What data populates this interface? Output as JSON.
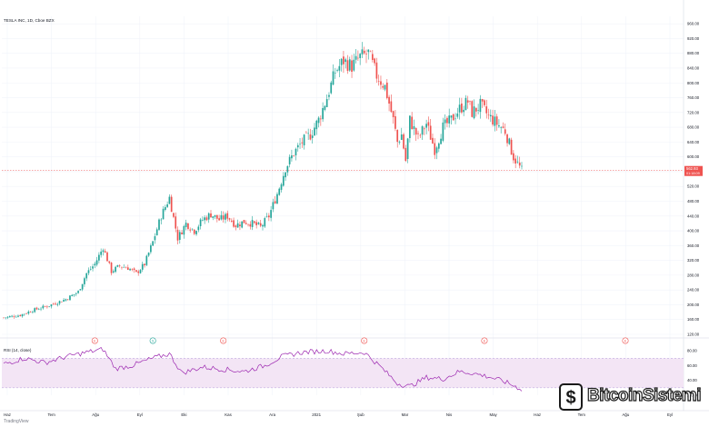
{
  "header": {
    "top_line": "serkaeguflorbin TradingView'da paylaşılmış, May 17, 2021 21:42:56 EEST",
    "symbol_line": "BATS:TSLA, 1D",
    "price_now": "562.93",
    "change": "−26.81 (−4.55%)",
    "open": "O:575.55",
    "high": "H:589.73",
    "low": "L:561.48",
    "close": "C:562.93"
  },
  "chart_label": "TESLA INC, 1D, Cboe BZX",
  "rsi_label": "RSI (14, close)",
  "colors": {
    "up": "#26a69a",
    "down": "#ef5350",
    "rsi": "#9c27b0",
    "rsi_band": "#f3e5f5",
    "price_tag": "#ef5350"
  },
  "price_tag": {
    "price": "562.93",
    "countdown": "01:18:09"
  },
  "tradingview_label": "TradingView",
  "watermark": "BitcoinSistemi",
  "chart_data": {
    "type": "candlestick",
    "price_axis": {
      "range": [
        120,
        980
      ],
      "ticks": [
        960,
        920,
        880,
        840,
        800,
        760,
        720,
        680,
        640,
        600,
        560,
        520,
        480,
        440,
        400,
        360,
        320,
        280,
        240,
        200,
        160,
        120
      ]
    },
    "rsi_axis": {
      "range": [
        20,
        90
      ],
      "ticks": [
        80,
        60,
        40,
        20
      ],
      "overbought": 70,
      "oversold": 30
    },
    "x_tick_labels": [
      "Haz",
      "Tem",
      "Ağu",
      "Eyl",
      "Eki",
      "Kas",
      "Ara",
      "2021",
      "Şub",
      "Mar",
      "Nis",
      "May",
      "Haz",
      "Tem",
      "Ağu",
      "Eyl",
      "Eki"
    ],
    "price_path": [
      {
        "i": 0,
        "p": 165
      },
      {
        "i": 8,
        "p": 172
      },
      {
        "i": 14,
        "p": 185
      },
      {
        "i": 22,
        "p": 198
      },
      {
        "i": 30,
        "p": 215
      },
      {
        "i": 36,
        "p": 235
      },
      {
        "i": 40,
        "p": 285
      },
      {
        "i": 44,
        "p": 310
      },
      {
        "i": 48,
        "p": 355
      },
      {
        "i": 52,
        "p": 290
      },
      {
        "i": 56,
        "p": 305
      },
      {
        "i": 60,
        "p": 300
      },
      {
        "i": 64,
        "p": 285
      },
      {
        "i": 68,
        "p": 310
      },
      {
        "i": 72,
        "p": 370
      },
      {
        "i": 76,
        "p": 440
      },
      {
        "i": 80,
        "p": 490
      },
      {
        "i": 84,
        "p": 380
      },
      {
        "i": 88,
        "p": 420
      },
      {
        "i": 92,
        "p": 400
      },
      {
        "i": 96,
        "p": 430
      },
      {
        "i": 100,
        "p": 445
      },
      {
        "i": 104,
        "p": 430
      },
      {
        "i": 108,
        "p": 440
      },
      {
        "i": 112,
        "p": 415
      },
      {
        "i": 116,
        "p": 425
      },
      {
        "i": 120,
        "p": 420
      },
      {
        "i": 124,
        "p": 410
      },
      {
        "i": 128,
        "p": 440
      },
      {
        "i": 132,
        "p": 500
      },
      {
        "i": 136,
        "p": 570
      },
      {
        "i": 140,
        "p": 610
      },
      {
        "i": 144,
        "p": 640
      },
      {
        "i": 148,
        "p": 660
      },
      {
        "i": 152,
        "p": 700
      },
      {
        "i": 156,
        "p": 760
      },
      {
        "i": 160,
        "p": 830
      },
      {
        "i": 164,
        "p": 860
      },
      {
        "i": 168,
        "p": 845
      },
      {
        "i": 172,
        "p": 870
      },
      {
        "i": 176,
        "p": 880
      },
      {
        "i": 180,
        "p": 820
      },
      {
        "i": 184,
        "p": 790
      },
      {
        "i": 188,
        "p": 700
      },
      {
        "i": 190,
        "p": 640
      },
      {
        "i": 192,
        "p": 660
      },
      {
        "i": 194,
        "p": 590
      },
      {
        "i": 196,
        "p": 700
      },
      {
        "i": 200,
        "p": 650
      },
      {
        "i": 204,
        "p": 690
      },
      {
        "i": 208,
        "p": 620
      },
      {
        "i": 212,
        "p": 680
      },
      {
        "i": 216,
        "p": 700
      },
      {
        "i": 220,
        "p": 730
      },
      {
        "i": 224,
        "p": 750
      },
      {
        "i": 226,
        "p": 720
      },
      {
        "i": 230,
        "p": 740
      },
      {
        "i": 234,
        "p": 710
      },
      {
        "i": 238,
        "p": 690
      },
      {
        "i": 242,
        "p": 670
      },
      {
        "i": 246,
        "p": 600
      },
      {
        "i": 250,
        "p": 563
      }
    ],
    "rsi_path": [
      {
        "i": 0,
        "p": 62
      },
      {
        "i": 10,
        "p": 70
      },
      {
        "i": 20,
        "p": 64
      },
      {
        "i": 30,
        "p": 72
      },
      {
        "i": 40,
        "p": 78
      },
      {
        "i": 48,
        "p": 82
      },
      {
        "i": 54,
        "p": 56
      },
      {
        "i": 62,
        "p": 60
      },
      {
        "i": 72,
        "p": 70
      },
      {
        "i": 80,
        "p": 76
      },
      {
        "i": 86,
        "p": 50
      },
      {
        "i": 96,
        "p": 58
      },
      {
        "i": 106,
        "p": 55
      },
      {
        "i": 116,
        "p": 52
      },
      {
        "i": 126,
        "p": 60
      },
      {
        "i": 134,
        "p": 72
      },
      {
        "i": 144,
        "p": 78
      },
      {
        "i": 156,
        "p": 80
      },
      {
        "i": 164,
        "p": 76
      },
      {
        "i": 174,
        "p": 78
      },
      {
        "i": 182,
        "p": 58
      },
      {
        "i": 190,
        "p": 36
      },
      {
        "i": 196,
        "p": 32
      },
      {
        "i": 204,
        "p": 44
      },
      {
        "i": 212,
        "p": 42
      },
      {
        "i": 220,
        "p": 52
      },
      {
        "i": 226,
        "p": 50
      },
      {
        "i": 234,
        "p": 45
      },
      {
        "i": 242,
        "p": 38
      },
      {
        "i": 250,
        "p": 28
      }
    ],
    "bar_count": 251,
    "event_markers": [
      {
        "i": 44,
        "label": "E"
      },
      {
        "i": 72,
        "label": "S"
      },
      {
        "i": 106,
        "label": "E"
      },
      {
        "i": 174,
        "label": "E"
      },
      {
        "i": 232,
        "label": "E"
      },
      {
        "i": 300,
        "label": "E"
      }
    ]
  }
}
